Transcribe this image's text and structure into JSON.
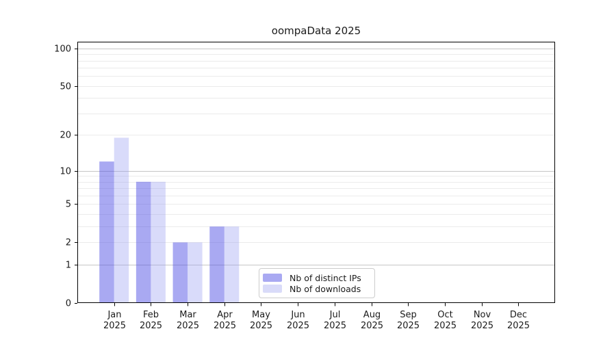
{
  "chart_data": {
    "type": "bar",
    "title": "oompaData 2025",
    "categories": [
      "Jan",
      "Feb",
      "Mar",
      "Apr",
      "May",
      "Jun",
      "Jul",
      "Aug",
      "Sep",
      "Oct",
      "Nov",
      "Dec"
    ],
    "category_year": "2025",
    "series": [
      {
        "name": "Nb of distinct IPs",
        "color": "#a9a9f2",
        "fill": "rgba(72,72,227,0.47)",
        "values": [
          12,
          8,
          2,
          3,
          0,
          0,
          0,
          0,
          0,
          0,
          0,
          0
        ]
      },
      {
        "name": "Nb of downloads",
        "color": "#d9dbf9",
        "fill": "rgba(149,155,241,0.36)",
        "values": [
          19,
          8,
          2,
          3,
          0,
          0,
          0,
          0,
          0,
          0,
          0,
          0
        ]
      }
    ],
    "xlabel": "",
    "ylabel": "",
    "yscale": "log10(1+x)",
    "ylim": [
      0,
      113
    ],
    "yticks": [
      0,
      1,
      2,
      5,
      10,
      20,
      50,
      100
    ],
    "major_gridlines": [
      1,
      10,
      100
    ],
    "minor_gridlines": [
      2,
      3,
      4,
      5,
      6,
      7,
      8,
      9,
      20,
      30,
      40,
      50,
      60,
      70,
      80,
      90
    ],
    "grid": true,
    "legend_position": "lower center",
    "colors": {
      "axis": "#000000",
      "tick_text": "#1a1a1a",
      "grid_minor": "#ebebeb",
      "grid_major": "#c6c6c6",
      "legend_border": "#cccccc",
      "background": "#ffffff"
    }
  }
}
